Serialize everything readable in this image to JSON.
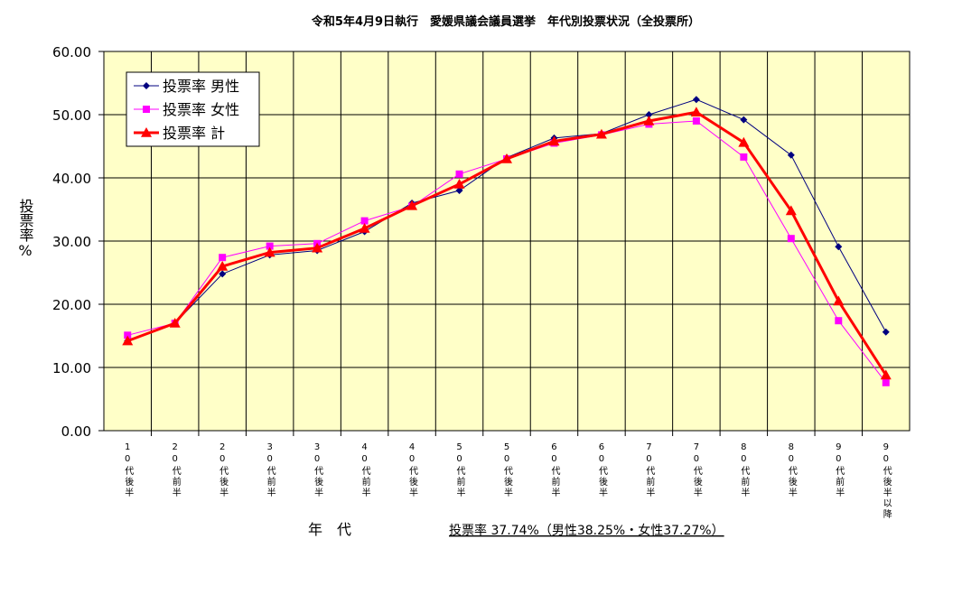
{
  "chart_data": {
    "type": "line",
    "title": "令和5年4月9日執行　愛媛県議会議員選挙　年代別投票状況（全投票所）",
    "y_label": "投票率%",
    "x_label": "年　代",
    "annotation": "投票率 37.74%（男性38.25%・女性37.27%）",
    "categories": [
      "10代後半",
      "20代前半",
      "20代後半",
      "30代前半",
      "30代後半",
      "40代前半",
      "40代後半",
      "50代前半",
      "50代後半",
      "60代前半",
      "60代後半",
      "70代前半",
      "70代後半",
      "80代前半",
      "80代後半",
      "90代前半",
      "90代後半以降"
    ],
    "series": [
      {
        "name": "投票率 男性",
        "color": "#000080",
        "marker": "diamond",
        "values": [
          14.2,
          17.0,
          24.8,
          27.8,
          28.5,
          31.5,
          36.0,
          38.0,
          43.2,
          46.3,
          47.0,
          50.0,
          52.4,
          49.2,
          43.6,
          29.1,
          15.6
        ]
      },
      {
        "name": "投票率 女性",
        "color": "#ff00ff",
        "marker": "square",
        "values": [
          15.1,
          17.0,
          27.4,
          29.2,
          29.6,
          33.2,
          35.5,
          40.6,
          43.0,
          45.5,
          46.8,
          48.5,
          49.0,
          43.3,
          30.4,
          17.4,
          7.6
        ]
      },
      {
        "name": "投票率 計",
        "color": "#ff0000",
        "marker": "triangle",
        "values": [
          14.2,
          17.0,
          26.0,
          28.2,
          28.9,
          32.0,
          35.6,
          39.0,
          43.0,
          45.8,
          46.9,
          49.0,
          50.4,
          45.6,
          34.8,
          20.5,
          8.8
        ]
      }
    ],
    "ylim": [
      0,
      60
    ],
    "yticks": [
      {
        "value": 0,
        "label": "0.00"
      },
      {
        "value": 10,
        "label": "10.00"
      },
      {
        "value": 20,
        "label": "20.00"
      },
      {
        "value": 30,
        "label": "30.00"
      },
      {
        "value": 40,
        "label": "40.00"
      },
      {
        "value": 50,
        "label": "50.00"
      },
      {
        "value": 60,
        "label": "60.00"
      }
    ],
    "grid": true,
    "legend": "top-left"
  }
}
